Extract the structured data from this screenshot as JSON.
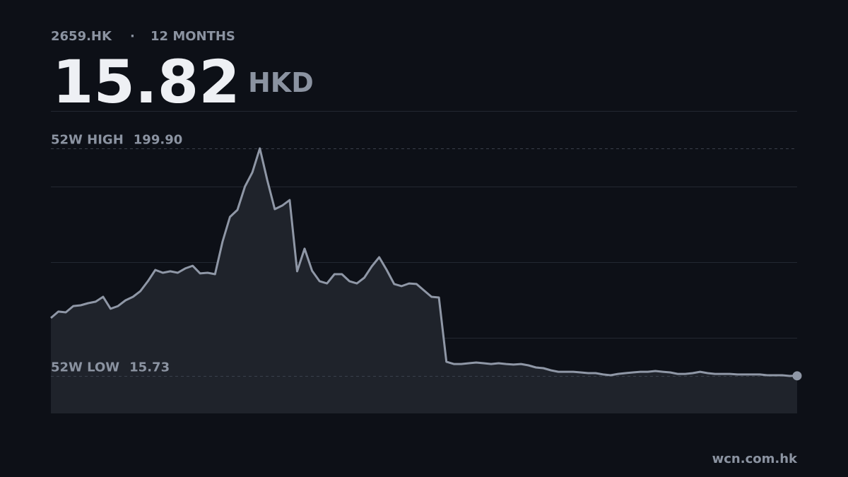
{
  "header": {
    "ticker": "2659.HK",
    "separator": "·",
    "period": "12 MONTHS",
    "price": 15.82,
    "currency": "HKD"
  },
  "chart_data": {
    "type": "line",
    "values": [
      62.6,
      67.8,
      67.2,
      72.3,
      72.9,
      74.6,
      75.8,
      79.8,
      70.1,
      72.3,
      76.9,
      79.8,
      84.4,
      92.4,
      101.5,
      99.2,
      100.4,
      99.2,
      102.7,
      104.9,
      98.7,
      99.2,
      98.1,
      124.4,
      144.4,
      150.1,
      169.0,
      180.5,
      199.9,
      174.2,
      150.7,
      153.6,
      158.1,
      100.4,
      118.7,
      100.9,
      92.4,
      90.6,
      98.1,
      98.1,
      92.4,
      90.6,
      95.2,
      104.4,
      111.8,
      101.5,
      90.1,
      88.4,
      90.6,
      90.1,
      84.9,
      79.8,
      79.2,
      27.2,
      25.4,
      25.4,
      26.0,
      26.6,
      26.0,
      25.4,
      26.0,
      25.4,
      24.9,
      25.4,
      24.3,
      22.6,
      22.0,
      20.3,
      19.1,
      19.1,
      19.1,
      18.6,
      18.0,
      18.0,
      16.9,
      16.3,
      17.4,
      18.0,
      18.6,
      19.1,
      19.1,
      19.7,
      19.1,
      18.6,
      17.4,
      17.4,
      18.0,
      19.1,
      18.0,
      17.4,
      17.4,
      17.4,
      16.9,
      16.9,
      16.9,
      16.9,
      16.3,
      16.3,
      16.3,
      15.73,
      15.82
    ],
    "color": "#8f97a6",
    "fill": "#1f232b",
    "ylim": [
      -14.6,
      230.2
    ],
    "yticks": [
      46.6,
      107.8,
      169.0
    ],
    "grid": true,
    "annotations": [
      {
        "label": "52W HIGH",
        "value": 199.9,
        "value_label": "199.90"
      },
      {
        "label": "52W LOW",
        "value": 15.73,
        "value_label": "15.73"
      }
    ]
  },
  "footer": {
    "source": "wcn.com.hk"
  }
}
